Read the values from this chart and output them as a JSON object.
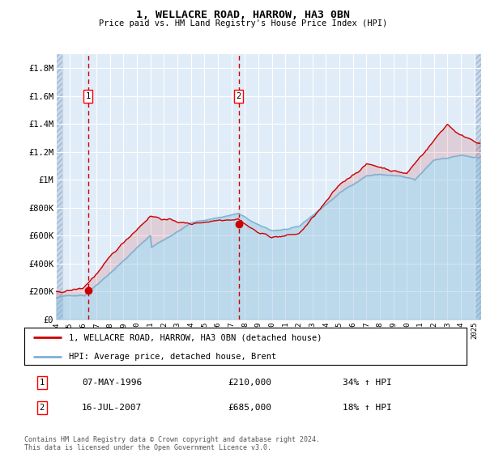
{
  "title": "1, WELLACRE ROAD, HARROW, HA3 0BN",
  "subtitle": "Price paid vs. HM Land Registry's House Price Index (HPI)",
  "legend_line1": "1, WELLACRE ROAD, HARROW, HA3 0BN (detached house)",
  "legend_line2": "HPI: Average price, detached house, Brent",
  "sale1_date": "07-MAY-1996",
  "sale1_price": 210000,
  "sale1_label": "34% ↑ HPI",
  "sale2_date": "16-JUL-2007",
  "sale2_price": 685000,
  "sale2_label": "18% ↑ HPI",
  "footnote": "Contains HM Land Registry data © Crown copyright and database right 2024.\nThis data is licensed under the Open Government Licence v3.0.",
  "ylim": [
    0,
    1900000
  ],
  "yticks": [
    0,
    200000,
    400000,
    600000,
    800000,
    1000000,
    1200000,
    1400000,
    1600000,
    1800000
  ],
  "ytick_labels": [
    "£0",
    "£200K",
    "£400K",
    "£600K",
    "£800K",
    "£1M",
    "£1.2M",
    "£1.4M",
    "£1.6M",
    "£1.8M"
  ],
  "hpi_color": "#7ab3d4",
  "price_color": "#cc0000",
  "vline_color": "#cc0000",
  "bg_chart": "#e0ecf8",
  "bg_hatch_color": "#c8d8ea",
  "grid_color": "#ffffff",
  "sale1_x_year": 1996.37,
  "sale2_x_year": 2007.54,
  "xlim_left": 1994.0,
  "xlim_right": 2025.5
}
